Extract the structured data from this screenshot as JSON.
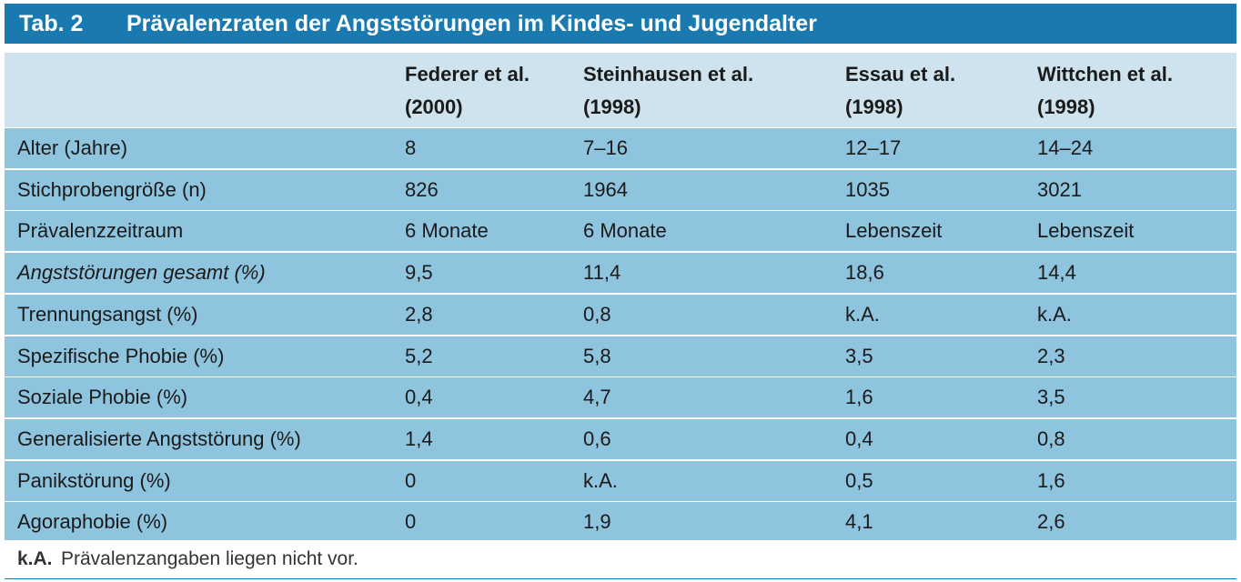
{
  "table": {
    "number": "Tab. 2",
    "title": "Prävalenzraten der Angststörungen im Kindes- und Jugendalter",
    "columns": [
      {
        "line1": "",
        "line2": ""
      },
      {
        "line1": "Federer et al.",
        "line2": "(2000)"
      },
      {
        "line1": "Steinhausen et al.",
        "line2": "(1998)"
      },
      {
        "line1": "Essau et al.",
        "line2": "(1998)"
      },
      {
        "line1": "Wittchen et al.",
        "line2": "(1998)"
      }
    ],
    "rows": [
      {
        "label": "Alter (Jahre)",
        "values": [
          "8",
          "7–16",
          "12–17",
          "14–24"
        ]
      },
      {
        "label": "Stichprobengröße (n)",
        "values": [
          "826",
          "1964",
          "1035",
          "3021"
        ]
      },
      {
        "label": "Prävalenzzeitraum",
        "values": [
          "6 Monate",
          "6 Monate",
          "Lebenszeit",
          "Lebenszeit"
        ]
      },
      {
        "label": "Angststörungen gesamt (%)",
        "values": [
          "9,5",
          "11,4",
          "18,6",
          "14,4"
        ]
      },
      {
        "label": "Trennungsangst (%)",
        "values": [
          "2,8",
          "0,8",
          "k.A.",
          "k.A."
        ]
      },
      {
        "label": "Spezifische Phobie (%)",
        "values": [
          "5,2",
          "5,8",
          "3,5",
          "2,3"
        ]
      },
      {
        "label": "Soziale Phobie (%)",
        "values": [
          "0,4",
          "4,7",
          "1,6",
          "3,5"
        ]
      },
      {
        "label": "Generalisierte Angststörung (%)",
        "values": [
          "1,4",
          "0,6",
          "0,4",
          "0,8"
        ]
      },
      {
        "label": "Panikstörung (%)",
        "values": [
          "0",
          "k.A.",
          "0,5",
          "1,6"
        ]
      },
      {
        "label": "Agoraphobie (%)",
        "values": [
          "0",
          "1,9",
          "4,1",
          "2,6"
        ]
      }
    ],
    "footnote": {
      "abbr": "k.A.",
      "text": "Prävalenzangaben liegen nicht vor."
    }
  },
  "colors": {
    "title_bar": "#1a7ab0",
    "header_bg": "#cfe3ee",
    "row_bg": "#8fc4df"
  }
}
